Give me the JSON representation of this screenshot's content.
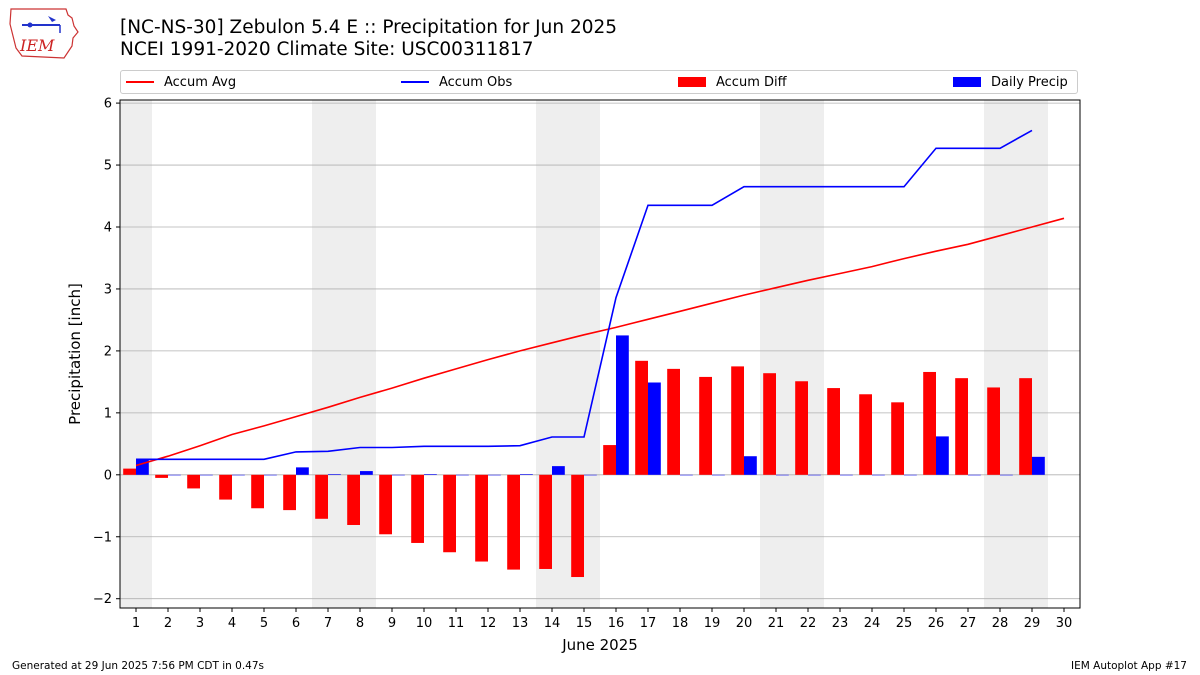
{
  "title": {
    "line1": "[NC-NS-30] Zebulon 5.4 E :: Precipitation for Jun 2025",
    "line2": "NCEI 1991-2020 Climate Site: USC00311817"
  },
  "logo": {
    "text": "IEM",
    "icon": "iem-logo-iowa-map"
  },
  "legend": [
    {
      "label": "Accum Avg",
      "color": "#ff0000",
      "kind": "line"
    },
    {
      "label": "Accum Obs",
      "color": "#0000ff",
      "kind": "line"
    },
    {
      "label": "Accum Diff",
      "color": "#ff0000",
      "kind": "bar"
    },
    {
      "label": "Daily Precip",
      "color": "#0000ff",
      "kind": "bar"
    }
  ],
  "footer": {
    "left": "Generated at 29 Jun 2025 7:56 PM CDT in 0.47s",
    "right": "IEM Autoplot App #17"
  },
  "chart_data": {
    "type": "bar",
    "xlabel": "June 2025",
    "ylabel": "Precipitation [inch]",
    "xlim": [
      0.5,
      30.5
    ],
    "ylim": [
      -2.15,
      6.05
    ],
    "x": [
      1,
      2,
      3,
      4,
      5,
      6,
      7,
      8,
      9,
      10,
      11,
      12,
      13,
      14,
      15,
      16,
      17,
      18,
      19,
      20,
      21,
      22,
      23,
      24,
      25,
      26,
      27,
      28,
      29,
      30
    ],
    "x_tick_labels": [
      "1",
      "2",
      "3",
      "4",
      "5",
      "6",
      "7",
      "8",
      "9",
      "10",
      "11",
      "12",
      "13",
      "14",
      "15",
      "16",
      "17",
      "18",
      "19",
      "20",
      "21",
      "22",
      "23",
      "24",
      "25",
      "26",
      "27",
      "28",
      "29",
      "30"
    ],
    "y_ticks": [
      -2,
      -1,
      0,
      1,
      2,
      3,
      4,
      5,
      6
    ],
    "y_tick_labels": [
      "−2",
      "−1",
      "0",
      "1",
      "2",
      "3",
      "4",
      "5",
      "6"
    ],
    "weekend_bands": [
      [
        0.5,
        1.5
      ],
      [
        6.5,
        8.5
      ],
      [
        13.5,
        15.5
      ],
      [
        20.5,
        22.5
      ],
      [
        27.5,
        29.5
      ]
    ],
    "grid": "horizontal",
    "series": [
      {
        "name": "Accum Avg",
        "kind": "line",
        "color": "#ff0000",
        "values": [
          0.15,
          0.3,
          0.47,
          0.65,
          0.79,
          0.94,
          1.09,
          1.25,
          1.4,
          1.56,
          1.71,
          1.86,
          2.0,
          2.13,
          2.26,
          2.38,
          2.51,
          2.64,
          2.77,
          2.9,
          3.02,
          3.14,
          3.25,
          3.36,
          3.49,
          3.61,
          3.72,
          3.86,
          4.0,
          4.14
        ]
      },
      {
        "name": "Accum Obs",
        "kind": "line",
        "color": "#0000ff",
        "values": [
          0.25,
          0.25,
          0.25,
          0.25,
          0.25,
          0.37,
          0.38,
          0.44,
          0.44,
          0.46,
          0.46,
          0.46,
          0.47,
          0.61,
          0.61,
          2.86,
          4.35,
          4.35,
          4.35,
          4.65,
          4.65,
          4.65,
          4.65,
          4.65,
          4.65,
          5.27,
          5.27,
          5.27,
          5.56,
          null
        ]
      },
      {
        "name": "Accum Diff",
        "kind": "bar",
        "color": "#ff0000",
        "values": [
          0.1,
          -0.05,
          -0.22,
          -0.4,
          -0.54,
          -0.57,
          -0.71,
          -0.81,
          -0.96,
          -1.1,
          -1.25,
          -1.4,
          -1.53,
          -1.52,
          -1.65,
          0.48,
          1.84,
          1.71,
          1.58,
          1.75,
          1.64,
          1.51,
          1.4,
          1.3,
          1.17,
          1.66,
          1.56,
          1.41,
          1.56,
          null
        ]
      },
      {
        "name": "Daily Precip",
        "kind": "bar",
        "color": "#0000ff",
        "values": [
          0.25,
          0,
          0,
          0,
          0,
          0.12,
          0.01,
          0.06,
          0,
          0.01,
          0,
          0,
          0.01,
          0.14,
          0,
          2.25,
          1.49,
          0,
          0,
          0.3,
          0,
          0,
          0,
          0,
          0,
          0.62,
          0,
          0,
          0.29,
          null
        ]
      }
    ]
  }
}
